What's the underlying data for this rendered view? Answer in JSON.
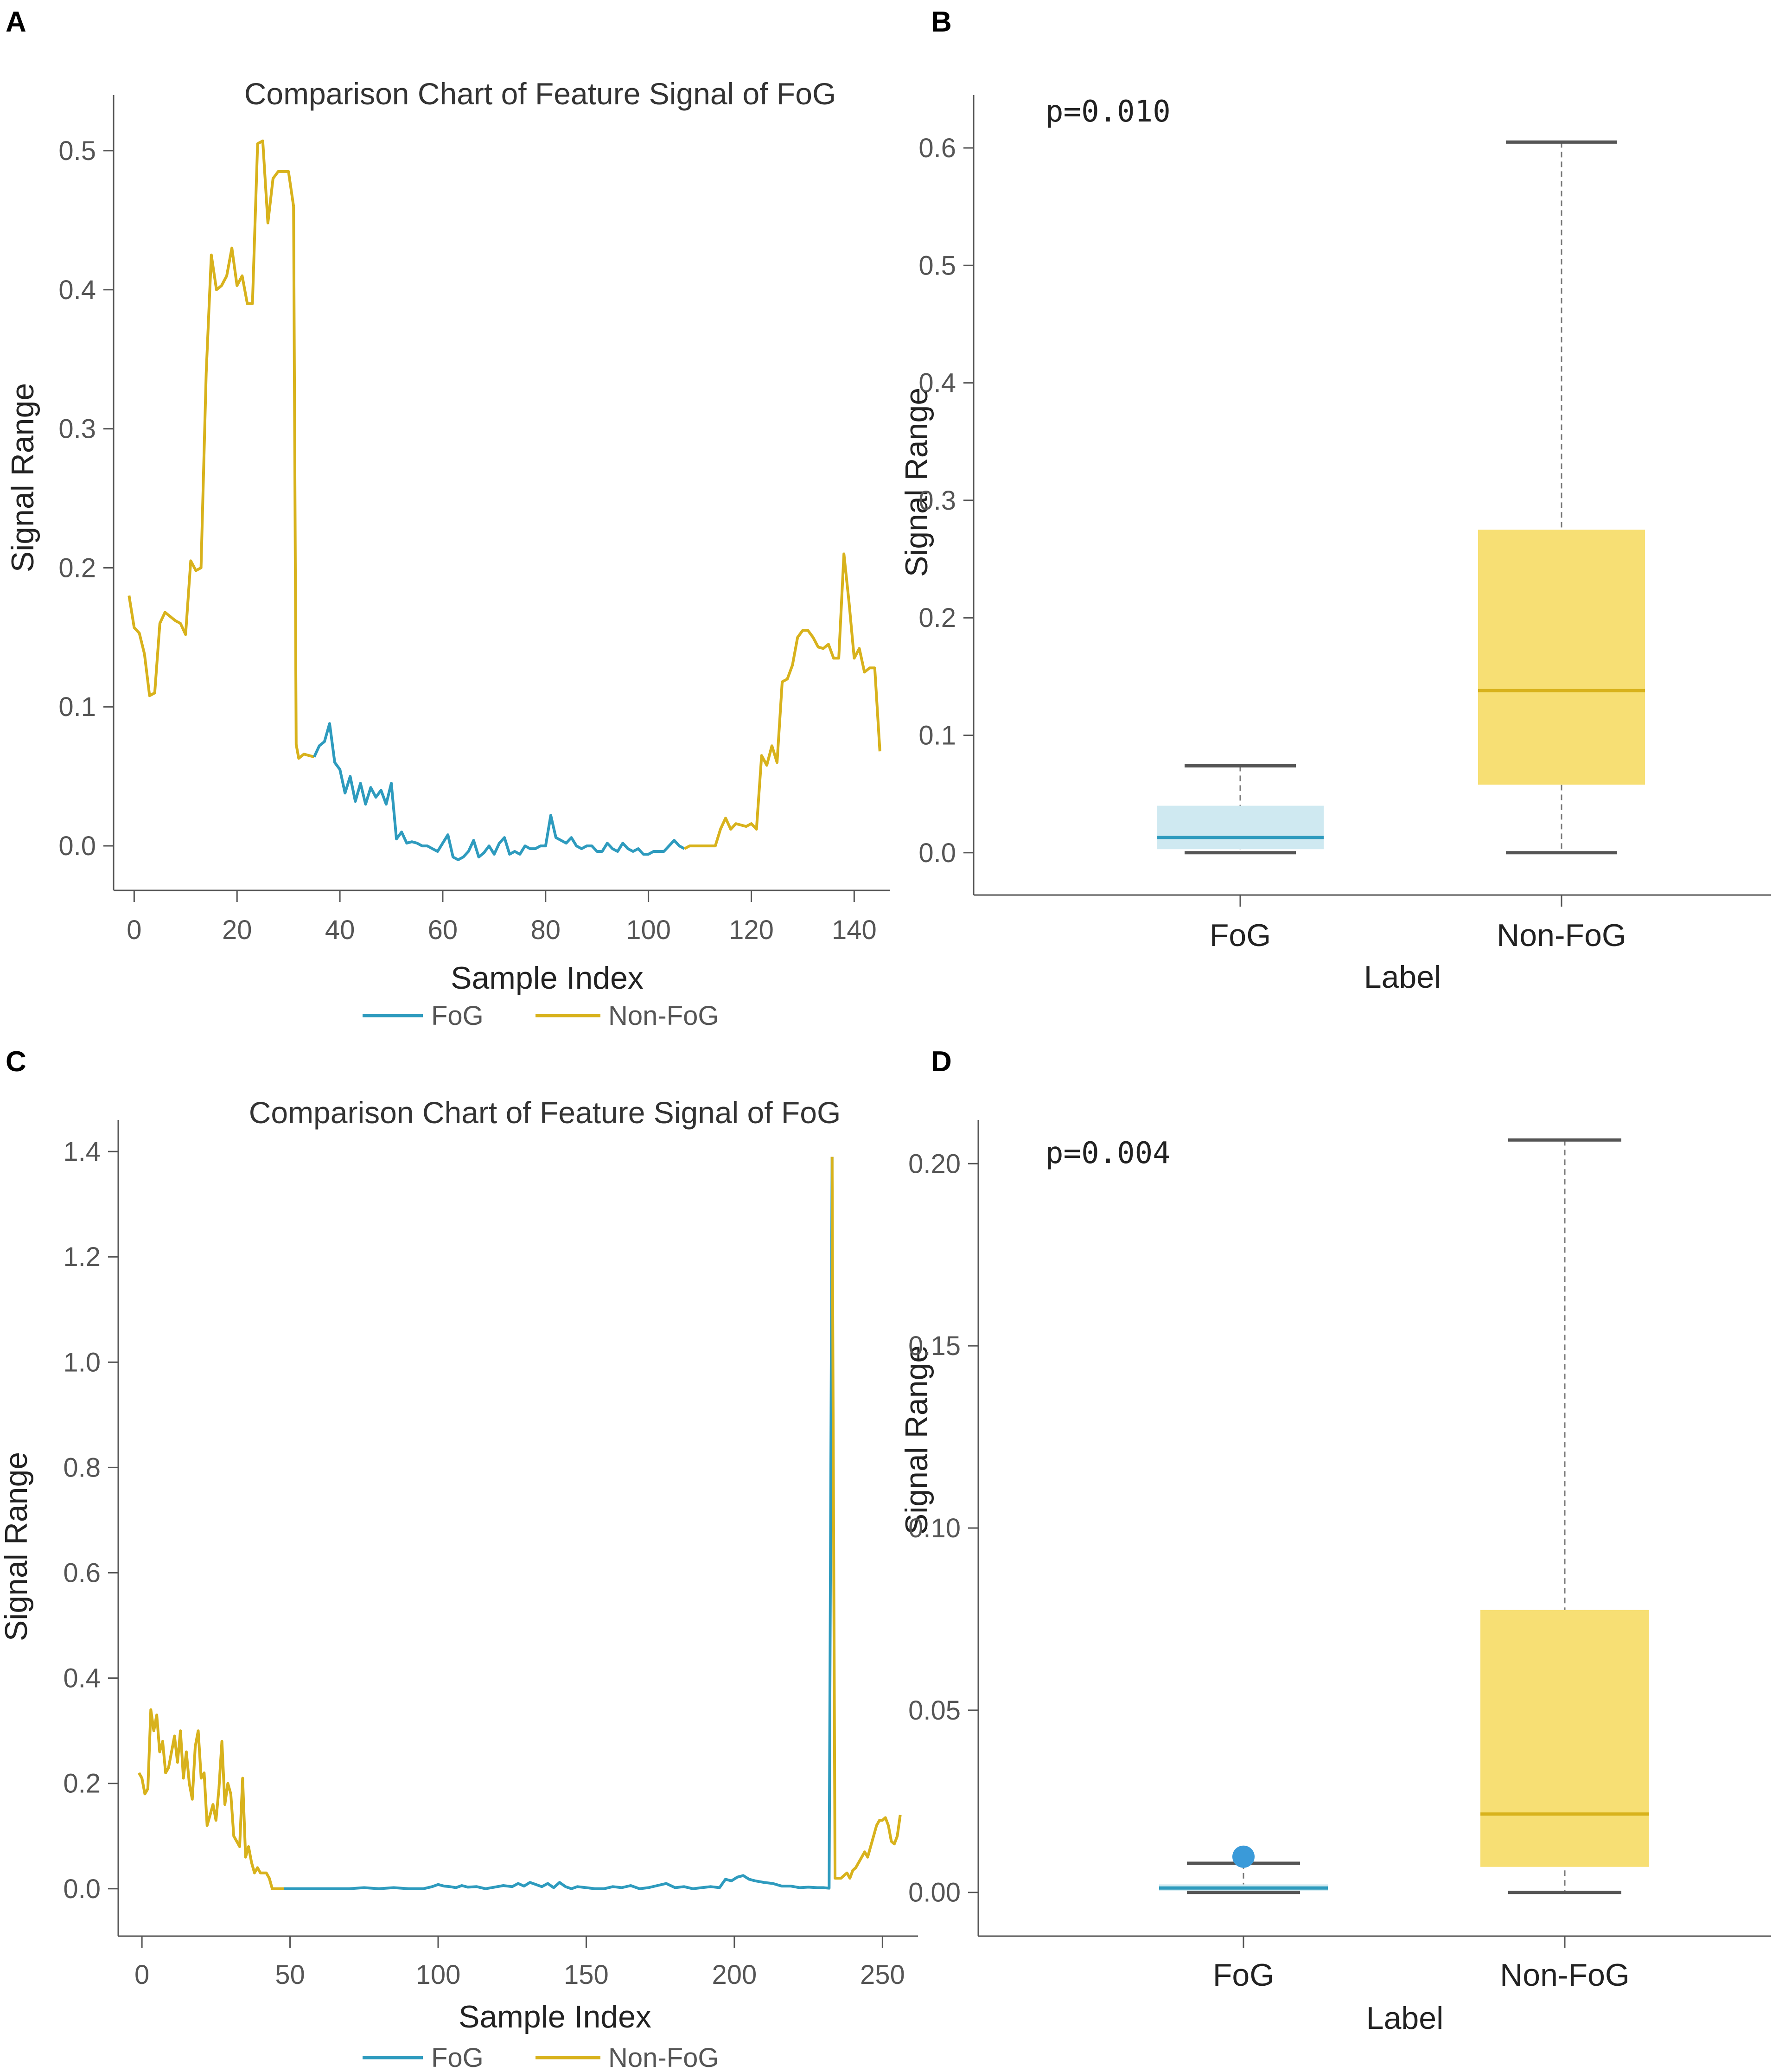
{
  "panels": [
    "A",
    "B",
    "C",
    "D"
  ],
  "colors": {
    "fog": "#2e9bbe",
    "nonfog": "#d8b21c",
    "fog_box_fill": "#cfe9f1",
    "nonfog_box_fill": "#f7df74",
    "whisker": "#555555",
    "outlier": "#3a9ad9"
  },
  "chart_data": [
    {
      "panel": "A",
      "type": "line",
      "title": "Comparison Chart of Feature Signal of FoG",
      "xlabel": "Sample Index",
      "ylabel": "Signal Range",
      "xlim": [
        -4,
        147
      ],
      "ylim": [
        -0.032,
        0.54
      ],
      "xticks": [
        0,
        20,
        40,
        60,
        80,
        100,
        120,
        140
      ],
      "yticks": [
        0.0,
        0.1,
        0.2,
        0.3,
        0.4,
        0.5
      ],
      "ytick_labels": [
        "0.0",
        "0.1",
        "0.2",
        "0.3",
        "0.4",
        "0.5"
      ],
      "legend": [
        "FoG",
        "Non-FoG"
      ],
      "series": [
        {
          "name": "Non-FoG",
          "x": [
            -1,
            0,
            1,
            2,
            3,
            4,
            5,
            6,
            7,
            8,
            9,
            10,
            11,
            12,
            13,
            14,
            15,
            16,
            17,
            18,
            19,
            20,
            21,
            22,
            23,
            24,
            25,
            26,
            27,
            28,
            29,
            30,
            31
          ],
          "y": [
            0.18,
            0.157,
            0.153,
            0.138,
            0.108,
            0.11,
            0.16,
            0.168,
            0.165,
            0.162,
            0.16,
            0.152,
            0.205,
            0.198,
            0.2,
            0.34,
            0.425,
            0.4,
            0.403,
            0.41,
            0.43,
            0.403,
            0.41,
            0.39,
            0.39,
            0.505,
            0.507,
            0.448,
            0.48,
            0.485,
            0.485,
            0.485,
            0.46
          ]
        },
        {
          "name": "Non-FoG",
          "x": [
            31,
            31.5,
            32,
            33,
            34,
            35
          ],
          "y": [
            0.46,
            0.073,
            0.063,
            0.066,
            0.065,
            0.064
          ]
        },
        {
          "name": "FoG",
          "x": [
            35,
            36,
            37,
            38,
            39,
            40,
            41,
            42,
            43,
            44,
            45,
            46,
            47,
            48,
            49,
            50,
            51,
            52,
            53,
            54,
            55,
            56,
            57,
            58,
            59,
            60,
            61,
            62,
            63,
            64,
            65,
            66,
            67,
            68,
            69,
            70,
            71,
            72,
            73,
            74,
            75,
            76,
            77,
            78,
            79,
            80,
            81,
            82,
            83,
            84,
            85,
            86,
            87,
            88,
            89,
            90,
            91,
            92,
            93,
            94,
            95,
            96,
            97,
            98,
            99,
            100,
            101,
            102,
            103,
            104,
            105,
            106,
            107
          ],
          "y": [
            0.064,
            0.072,
            0.075,
            0.088,
            0.06,
            0.055,
            0.038,
            0.05,
            0.032,
            0.045,
            0.03,
            0.042,
            0.035,
            0.04,
            0.03,
            0.045,
            0.005,
            0.01,
            0.002,
            0.003,
            0.002,
            0.0,
            0.0,
            -0.002,
            -0.004,
            0.002,
            0.008,
            -0.008,
            -0.01,
            -0.008,
            -0.004,
            0.004,
            -0.008,
            -0.005,
            0.0,
            -0.006,
            0.002,
            0.006,
            -0.006,
            -0.004,
            -0.006,
            0.0,
            -0.002,
            -0.002,
            0.0,
            0.0,
            0.022,
            0.006,
            0.004,
            0.002,
            0.006,
            0.0,
            -0.002,
            0.0,
            0.0,
            -0.004,
            -0.004,
            0.002,
            -0.002,
            -0.004,
            0.002,
            -0.002,
            -0.004,
            -0.002,
            -0.006,
            -0.006,
            -0.004,
            -0.004,
            -0.004,
            0.0,
            0.004,
            0.0,
            -0.002
          ]
        },
        {
          "name": "Non-FoG",
          "x": [
            107,
            108,
            109,
            110,
            111,
            112,
            113,
            114,
            115,
            116,
            117,
            118,
            119,
            120,
            121,
            122,
            123,
            124,
            125,
            126,
            127,
            128,
            129,
            130,
            131,
            132,
            133,
            134,
            135,
            136,
            137,
            138,
            139,
            140,
            141,
            142,
            143,
            144,
            145
          ],
          "y": [
            -0.002,
            0.0,
            0.0,
            0.0,
            0.0,
            0.0,
            0.0,
            0.012,
            0.02,
            0.012,
            0.016,
            0.015,
            0.014,
            0.016,
            0.012,
            0.065,
            0.058,
            0.072,
            0.06,
            0.118,
            0.12,
            0.13,
            0.15,
            0.155,
            0.155,
            0.15,
            0.143,
            0.142,
            0.145,
            0.135,
            0.135,
            0.21,
            0.175,
            0.135,
            0.142,
            0.125,
            0.128,
            0.128,
            0.068
          ]
        }
      ]
    },
    {
      "panel": "B",
      "type": "box",
      "annotation": "p=0.010",
      "xlabel": "Label",
      "ylabel": "Signal Range",
      "ylim": [
        -0.036,
        0.645
      ],
      "yticks": [
        0.0,
        0.1,
        0.2,
        0.3,
        0.4,
        0.5,
        0.6
      ],
      "ytick_labels": [
        "0.0",
        "0.1",
        "0.2",
        "0.3",
        "0.4",
        "0.5",
        "0.6"
      ],
      "categories": [
        "FoG",
        "Non-FoG"
      ],
      "boxes": [
        {
          "name": "FoG",
          "whisker_low": 0.0,
          "q1": 0.003,
          "median": 0.013,
          "q3": 0.04,
          "whisker_high": 0.074,
          "outliers": []
        },
        {
          "name": "Non-FoG",
          "whisker_low": 0.0,
          "q1": 0.058,
          "median": 0.138,
          "q3": 0.275,
          "whisker_high": 0.605,
          "outliers": []
        }
      ]
    },
    {
      "panel": "C",
      "type": "line",
      "title": "Comparison Chart of Feature Signal of FoG",
      "xlabel": "Sample Index",
      "ylabel": "Signal Range",
      "xlim": [
        -8,
        262
      ],
      "ylim": [
        -0.09,
        1.46
      ],
      "xticks": [
        0,
        50,
        100,
        150,
        200,
        250
      ],
      "yticks": [
        0.0,
        0.2,
        0.4,
        0.6,
        0.8,
        1.0,
        1.2,
        1.4
      ],
      "ytick_labels": [
        "0.0",
        "0.2",
        "0.4",
        "0.6",
        "0.8",
        "1.0",
        "1.2",
        "1.4"
      ],
      "legend": [
        "FoG",
        "Non-FoG"
      ],
      "series": [
        {
          "name": "Non-FoG",
          "x": [
            -1,
            0,
            1,
            2,
            3,
            4,
            5,
            6,
            7,
            8,
            9,
            10,
            11,
            12,
            13,
            14,
            15,
            16,
            17,
            18,
            19,
            20,
            21,
            22,
            23,
            24,
            25,
            26,
            27,
            28,
            29,
            30,
            31,
            32,
            33,
            34,
            35,
            36,
            37,
            38,
            39,
            40,
            41,
            42,
            43,
            44,
            45,
            46,
            47,
            48
          ],
          "y": [
            0.22,
            0.21,
            0.18,
            0.19,
            0.34,
            0.3,
            0.33,
            0.26,
            0.28,
            0.22,
            0.23,
            0.26,
            0.29,
            0.24,
            0.3,
            0.21,
            0.26,
            0.2,
            0.17,
            0.27,
            0.3,
            0.21,
            0.22,
            0.12,
            0.14,
            0.16,
            0.13,
            0.19,
            0.28,
            0.16,
            0.2,
            0.18,
            0.1,
            0.09,
            0.08,
            0.21,
            0.06,
            0.08,
            0.05,
            0.03,
            0.04,
            0.03,
            0.03,
            0.03,
            0.02,
            0.0,
            0.0,
            0.0,
            0.0,
            0.0
          ]
        },
        {
          "name": "FoG",
          "x": [
            48,
            60,
            70,
            75,
            80,
            85,
            90,
            95,
            98,
            100,
            102,
            104,
            106,
            108,
            110,
            113,
            116,
            119,
            122,
            125,
            127,
            129,
            131,
            133,
            135,
            137,
            139,
            141,
            143,
            145,
            147,
            150,
            153,
            156,
            159,
            162,
            165,
            168,
            171,
            174,
            177,
            180,
            183,
            186,
            189,
            192,
            195,
            197,
            199,
            201,
            203,
            205,
            207,
            210,
            213,
            216,
            219,
            222,
            225,
            228,
            230,
            232,
            233
          ],
          "y": [
            0.0,
            0.0,
            0.0,
            0.002,
            0.0,
            0.002,
            0.0,
            0.0,
            0.004,
            0.008,
            0.005,
            0.004,
            0.002,
            0.006,
            0.003,
            0.004,
            0.0,
            0.003,
            0.006,
            0.004,
            0.01,
            0.005,
            0.012,
            0.008,
            0.004,
            0.01,
            0.002,
            0.012,
            0.004,
            0.0,
            0.004,
            0.002,
            0.0,
            0.0,
            0.004,
            0.002,
            0.006,
            0.0,
            0.002,
            0.006,
            0.01,
            0.002,
            0.004,
            0.0,
            0.002,
            0.004,
            0.002,
            0.018,
            0.015,
            0.022,
            0.025,
            0.018,
            0.015,
            0.012,
            0.01,
            0.005,
            0.005,
            0.002,
            0.003,
            0.002,
            0.002,
            0.001,
            1.39
          ]
        },
        {
          "name": "Non-FoG",
          "x": [
            233,
            234,
            235,
            236,
            237,
            238,
            239,
            240,
            241,
            242,
            243,
            244,
            245,
            246,
            247,
            248,
            249,
            250,
            251,
            252,
            253,
            254,
            255,
            256
          ],
          "y": [
            1.39,
            0.02,
            0.02,
            0.02,
            0.025,
            0.03,
            0.02,
            0.035,
            0.04,
            0.05,
            0.06,
            0.07,
            0.06,
            0.08,
            0.1,
            0.12,
            0.13,
            0.13,
            0.135,
            0.12,
            0.09,
            0.085,
            0.1,
            0.14
          ]
        }
      ]
    },
    {
      "panel": "D",
      "type": "box",
      "annotation": "p=0.004",
      "xlabel": "Label",
      "ylabel": "Signal Range",
      "ylim": [
        -0.012,
        0.212
      ],
      "yticks": [
        0.0,
        0.05,
        0.1,
        0.15,
        0.2
      ],
      "ytick_labels": [
        "0.00",
        "0.05",
        "0.10",
        "0.15",
        "0.20"
      ],
      "categories": [
        "FoG",
        "Non-FoG"
      ],
      "boxes": [
        {
          "name": "FoG",
          "whisker_low": 0.0,
          "q1": 0.0005,
          "median": 0.0012,
          "q3": 0.0022,
          "whisker_high": 0.008,
          "outliers": [
            0.0098
          ]
        },
        {
          "name": "Non-FoG",
          "whisker_low": 0.0,
          "q1": 0.007,
          "median": 0.0215,
          "q3": 0.0775,
          "whisker_high": 0.2065,
          "outliers": []
        }
      ]
    }
  ]
}
